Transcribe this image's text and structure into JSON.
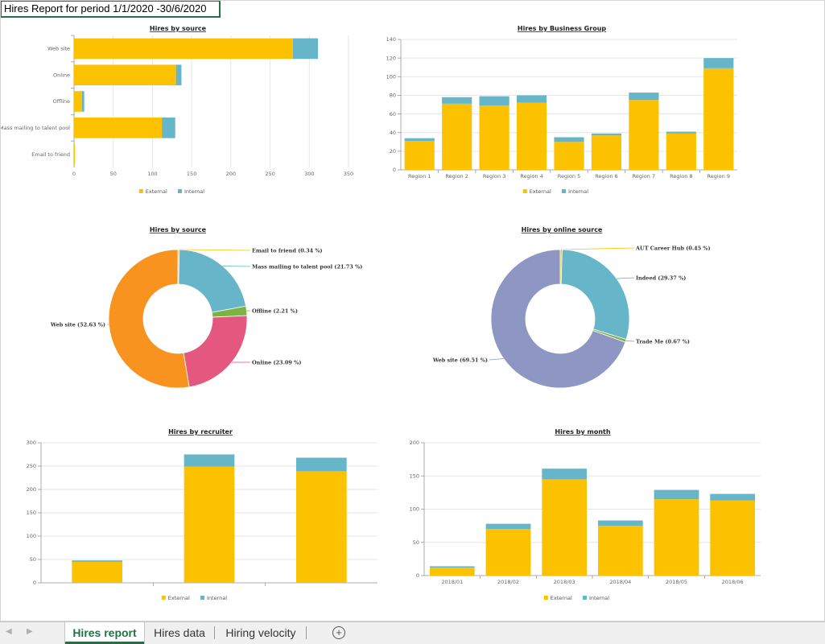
{
  "report_title": "Hires Report for period 1/1/2020  -30/6/2020",
  "colors": {
    "external": "#FCC200",
    "internal": "#66B5C9"
  },
  "tabs": {
    "active": "Hires report",
    "data": "Hires data",
    "velocity": "Hiring velocity"
  },
  "icons": {
    "prev": "caret-left-icon",
    "next": "caret-right-icon",
    "add": "plus-circle-icon"
  },
  "chart_data": [
    {
      "id": "source_bar",
      "type": "bar",
      "orientation": "horizontal",
      "stacked": true,
      "title": "Hires by source",
      "categories": [
        "Web site",
        "Online",
        "Offline",
        "Mass mailing to talent pool",
        "Email to friend"
      ],
      "series": [
        {
          "name": "External",
          "values": [
            279,
            130,
            10,
            112,
            1
          ]
        },
        {
          "name": "Internal",
          "values": [
            32,
            7,
            3,
            17,
            0
          ]
        }
      ],
      "xlim": [
        0,
        350
      ],
      "xticks": [
        0,
        50,
        100,
        150,
        200,
        250,
        300,
        350
      ],
      "grid": true,
      "legend": "bottom"
    },
    {
      "id": "bg_bar",
      "type": "bar",
      "stacked": true,
      "title": "Hires by Business Group",
      "categories": [
        "Region 1",
        "Region 2",
        "Region 3",
        "Region 4",
        "Region 5",
        "Region 6",
        "Region 7",
        "Region 8",
        "Region 9"
      ],
      "series": [
        {
          "name": "External",
          "values": [
            31,
            71,
            69,
            72,
            30,
            37,
            75,
            39,
            109
          ]
        },
        {
          "name": "Internal",
          "values": [
            3,
            7,
            10,
            8,
            5,
            2,
            8,
            2,
            11
          ]
        }
      ],
      "ylim": [
        0,
        140
      ],
      "yticks": [
        0,
        20,
        40,
        60,
        80,
        100,
        120,
        140
      ],
      "grid": true,
      "legend": "bottom"
    },
    {
      "id": "source_pie",
      "type": "pie",
      "donut": true,
      "title": "Hires by source",
      "slices": [
        {
          "name": "Email to friend",
          "value": 0.34,
          "label": "Email to friend (0.34 %)",
          "color": "#FCC200"
        },
        {
          "name": "Mass mailing to talent pool",
          "value": 21.73,
          "label": "Mass mailing to talent pool (21.73 %)",
          "color": "#66B5C9"
        },
        {
          "name": "Offline",
          "value": 2.21,
          "label": "Offline (2.21 %)",
          "color": "#7CB342"
        },
        {
          "name": "Online",
          "value": 23.09,
          "label": "Online (23.09 %)",
          "color": "#E4577F"
        },
        {
          "name": "Web site",
          "value": 52.63,
          "label": "Web site (52.63 %)",
          "color": "#F7931E"
        }
      ]
    },
    {
      "id": "online_pie",
      "type": "pie",
      "donut": true,
      "title": "Hires by online source",
      "slices": [
        {
          "name": "AUT Career Hub",
          "value": 0.45,
          "label": "AUT Career Hub (0.45 %)",
          "color": "#FCC200"
        },
        {
          "name": "Indeed",
          "value": 29.37,
          "label": "Indeed (29.37 %)",
          "color": "#66B5C9"
        },
        {
          "name": "Trade Me",
          "value": 0.67,
          "label": "Trade Me (0.67 %)",
          "color": "#7CB342"
        },
        {
          "name": "Web site",
          "value": 69.51,
          "label": "Web site (69.51 %)",
          "color": "#8E97C4"
        }
      ]
    },
    {
      "id": "recruiter_bar",
      "type": "bar",
      "stacked": true,
      "title": "Hires by recruiter",
      "categories": [
        "",
        "",
        ""
      ],
      "series": [
        {
          "name": "External",
          "values": [
            45,
            249,
            239
          ]
        },
        {
          "name": "Internal",
          "values": [
            3,
            26,
            29
          ]
        }
      ],
      "ylim": [
        0,
        300
      ],
      "yticks": [
        0,
        50,
        100,
        150,
        200,
        250,
        300
      ],
      "grid": true,
      "legend": "bottom"
    },
    {
      "id": "month_bar",
      "type": "bar",
      "stacked": true,
      "title": "Hires by month",
      "categories": [
        "2018/01",
        "2018/02",
        "2018/03",
        "2018/04",
        "2018/05",
        "2018/06"
      ],
      "series": [
        {
          "name": "External",
          "values": [
            12,
            70,
            145,
            75,
            115,
            113
          ]
        },
        {
          "name": "Internal",
          "values": [
            2,
            8,
            16,
            8,
            14,
            10
          ]
        }
      ],
      "ylim": [
        0,
        200
      ],
      "yticks": [
        0,
        50,
        100,
        150,
        200
      ],
      "grid": true,
      "legend": "bottom"
    }
  ]
}
